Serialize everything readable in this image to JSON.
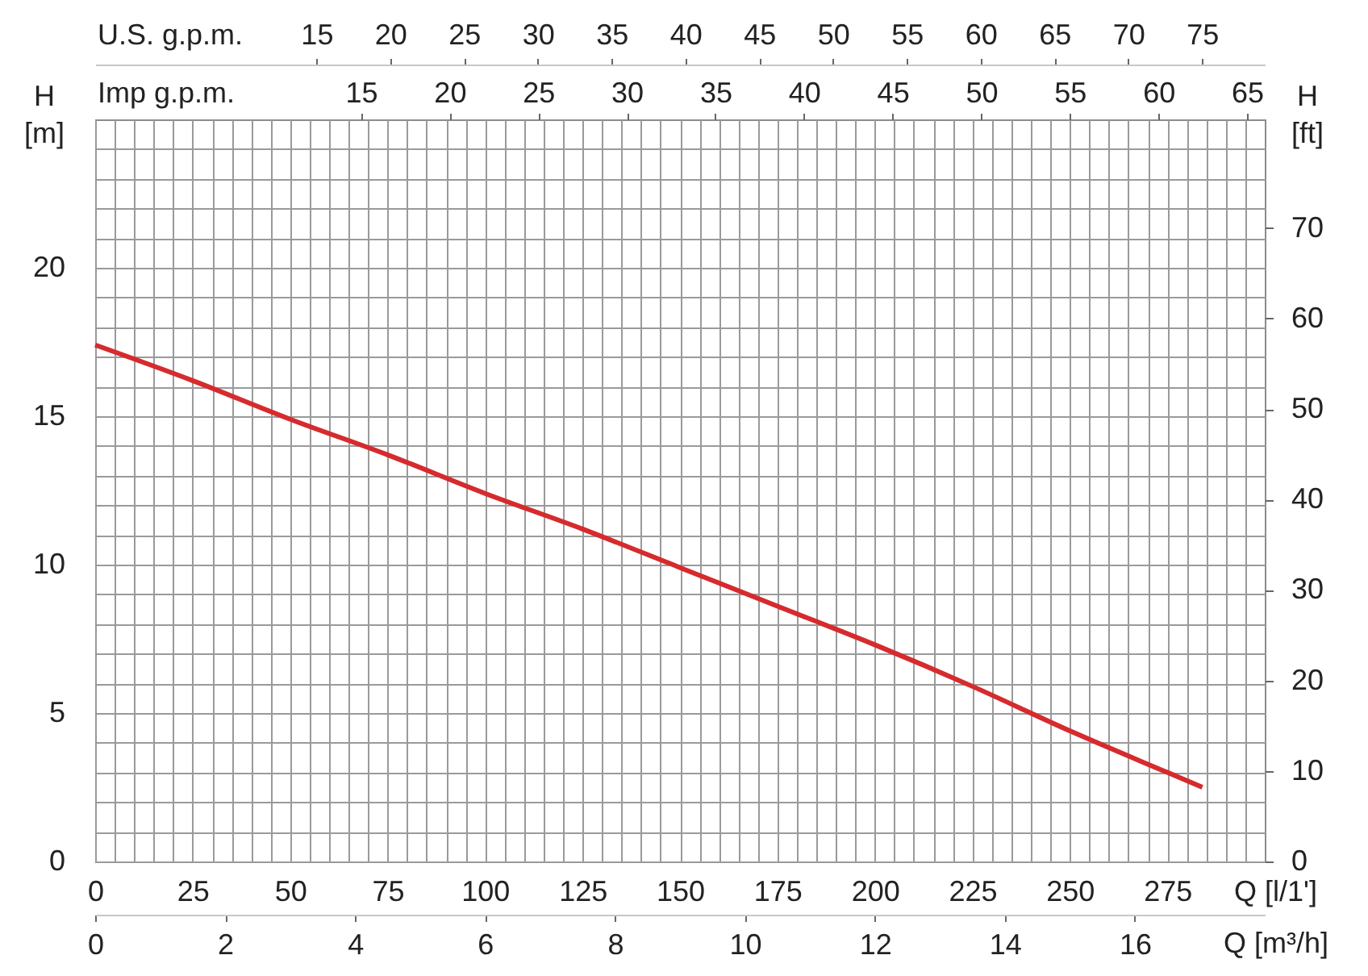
{
  "chart_data": {
    "type": "line",
    "xlabel": "Q [l/1']",
    "ylabel": "H [m]",
    "y2label": "H [ft]",
    "x2label": "Imp g.p.m.",
    "x": [
      0,
      25,
      50,
      75,
      100,
      125,
      150,
      175,
      200,
      225,
      250,
      275,
      284
    ],
    "values": [
      17.4,
      16.2,
      14.9,
      13.7,
      12.4,
      11.2,
      9.9,
      8.6,
      7.3,
      5.9,
      4.4,
      3.0,
      2.5
    ],
    "color": "#d62b2e",
    "line_style": "solid",
    "grid": true,
    "xlim": [
      0,
      300
    ],
    "xticks": [
      0,
      {
        "value": 5,
        "label": null
      },
      {
        "value": 10,
        "label": null
      },
      {
        "value": 15,
        "label": null
      },
      {
        "value": 20,
        "label": null
      },
      25,
      {
        "value": 30,
        "label": null
      },
      {
        "value": 35,
        "label": null
      },
      {
        "value": 40,
        "label": null
      },
      {
        "value": 45,
        "label": null
      },
      50,
      {
        "value": 55,
        "label": null
      },
      {
        "value": 60,
        "label": null
      },
      {
        "value": 65,
        "label": null
      },
      {
        "value": 70,
        "label": null
      },
      75,
      {
        "value": 80,
        "label": null
      },
      {
        "value": 85,
        "label": null
      },
      {
        "value": 90,
        "label": null
      },
      {
        "value": 95,
        "label": null
      },
      100,
      {
        "value": 105,
        "label": null
      },
      {
        "value": 110,
        "label": null
      },
      {
        "value": 115,
        "label": null
      },
      {
        "value": 120,
        "label": null
      },
      125,
      {
        "value": 130,
        "label": null
      },
      {
        "value": 135,
        "label": null
      },
      {
        "value": 140,
        "label": null
      },
      {
        "value": 145,
        "label": null
      },
      150,
      {
        "value": 155,
        "label": null
      },
      {
        "value": 160,
        "label": null
      },
      {
        "value": 165,
        "label": null
      },
      {
        "value": 170,
        "label": null
      },
      175,
      {
        "value": 180,
        "label": null
      },
      {
        "value": 185,
        "label": null
      },
      {
        "value": 190,
        "label": null
      },
      {
        "value": 195,
        "label": null
      },
      200,
      {
        "value": 205,
        "label": null
      },
      {
        "value": 210,
        "label": null
      },
      {
        "value": 215,
        "label": null
      },
      {
        "value": 220,
        "label": null
      },
      225,
      {
        "value": 230,
        "label": null
      },
      {
        "value": 235,
        "label": null
      },
      {
        "value": 240,
        "label": null
      },
      {
        "value": 245,
        "label": null
      },
      250,
      {
        "value": 255,
        "label": null
      },
      {
        "value": 260,
        "label": null
      },
      {
        "value": 265,
        "label": null
      },
      {
        "value": 270,
        "label": null
      },
      275,
      {
        "value": 280,
        "label": null
      },
      {
        "value": 285,
        "label": null
      },
      {
        "value": 290,
        "label": null
      },
      {
        "value": 295,
        "label": null
      }
    ],
    "ylim": [
      0,
      25
    ],
    "yticks": [
      0,
      {
        "value": 1,
        "label": null
      },
      {
        "value": 2,
        "label": null
      },
      {
        "value": 3,
        "label": null
      },
      {
        "value": 4,
        "label": null
      },
      5,
      {
        "value": 6,
        "label": null
      },
      {
        "value": 7,
        "label": null
      },
      {
        "value": 8,
        "label": null
      },
      {
        "value": 9,
        "label": null
      },
      10,
      {
        "value": 11,
        "label": null
      },
      {
        "value": 12,
        "label": null
      },
      {
        "value": 13,
        "label": null
      },
      {
        "value": 14,
        "label": null
      },
      15,
      {
        "value": 16,
        "label": null
      },
      {
        "value": 17,
        "label": null
      },
      {
        "value": 18,
        "label": null
      },
      {
        "value": 19,
        "label": null
      },
      20,
      {
        "value": 21,
        "label": null
      },
      {
        "value": 22,
        "label": null
      },
      {
        "value": 23,
        "label": null
      },
      {
        "value": 24,
        "label": null
      }
    ],
    "y2lim": [
      0,
      82
    ],
    "y2ticks": [
      0,
      10,
      20,
      30,
      40,
      50,
      60,
      70
    ],
    "x2lim": [
      0,
      66
    ],
    "x2ticks": [
      15,
      20,
      25,
      30,
      35,
      40,
      45,
      50,
      55,
      60,
      65
    ],
    "annotations": [
      "U.S. g.p.m.",
      "15",
      "20",
      "25",
      "30",
      "35",
      "40",
      "45",
      "50",
      "55",
      "60",
      "65",
      "70",
      "75",
      "Q [m³/h]",
      "0",
      "2",
      "4",
      "6",
      "8",
      "10",
      "12",
      "14",
      "16"
    ]
  }
}
